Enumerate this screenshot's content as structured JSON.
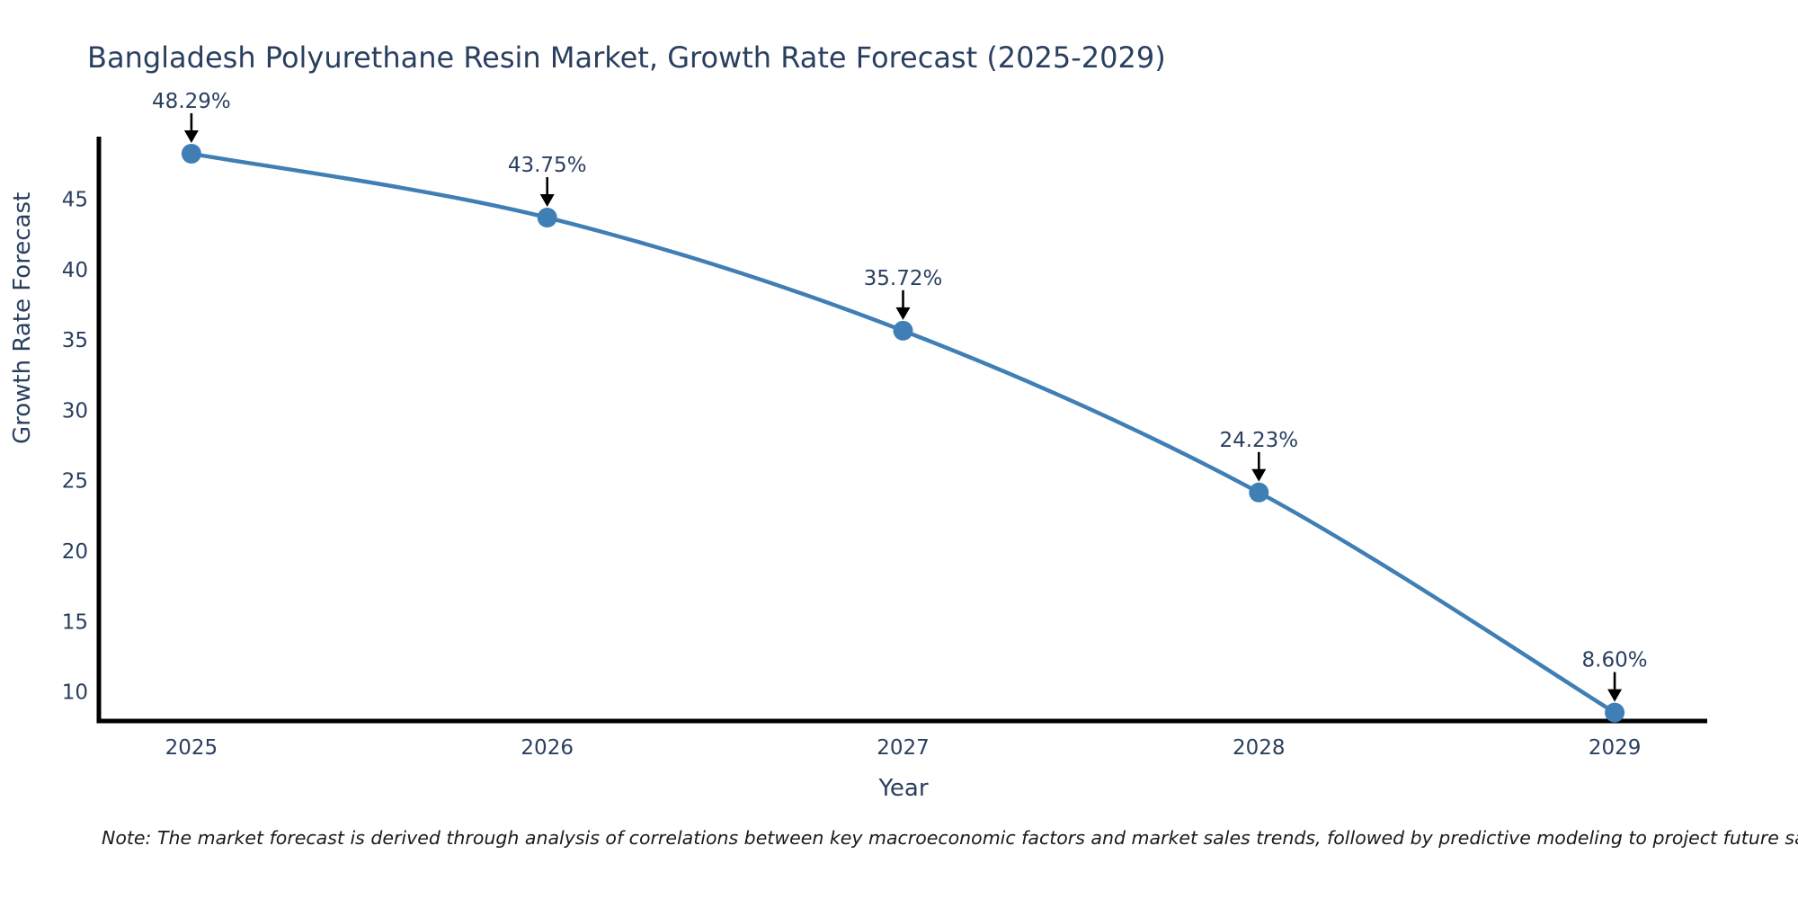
{
  "page": {
    "title": "Bangladesh Polyurethane Resin Market, Growth Rate Forecast (2025-2029)",
    "note": "Note: The market forecast is derived through analysis of correlations between key macroeconomic factors and market sales trends, followed by predictive modeling to project future sales"
  },
  "chart_data": {
    "type": "line",
    "title": "Bangladesh Polyurethane Resin Market, Growth Rate Forecast (2025-2029)",
    "xlabel": "Year",
    "ylabel": "Growth Rate Forecast",
    "x": [
      2025,
      2026,
      2027,
      2028,
      2029
    ],
    "series": [
      {
        "name": "Growth Rate Forecast",
        "values": [
          48.29,
          43.75,
          35.72,
          24.23,
          8.6
        ],
        "point_labels": [
          "48.29%",
          "43.75%",
          "35.72%",
          "24.23%",
          "8.60%"
        ]
      }
    ],
    "xtick_labels": [
      "2025",
      "2026",
      "2027",
      "2028",
      "2029"
    ],
    "ytick_values": [
      45,
      40,
      35,
      30,
      25,
      20,
      15,
      10
    ],
    "ylim": [
      8,
      49.5
    ],
    "xlim": [
      2024.74,
      2029.26
    ],
    "grid": false,
    "legend_position": "none",
    "line_shape": "spline",
    "annotations_have_arrows": true,
    "colors": {
      "line": "#3f7fb5",
      "marker": "#3f7fb5",
      "axis_line": "#000000",
      "tick_text": "#2a3f5f",
      "annotation_text": "#2a3f5f",
      "annotation_arrow": "#000000",
      "note_text": "#1a1a1a"
    }
  }
}
